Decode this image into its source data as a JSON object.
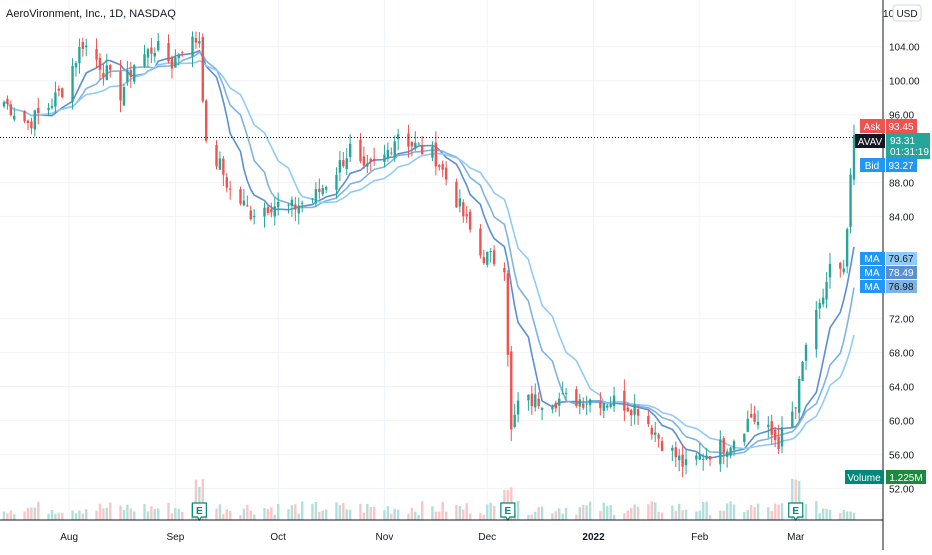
{
  "header": {
    "title": "AeroVironment, Inc., 1D, NASDAQ",
    "currency": "USD",
    "axis_top_fragment": "10"
  },
  "price_labels": {
    "ask": {
      "label": "Ask",
      "value": "93.45"
    },
    "last": {
      "label": "AVAV",
      "value": "93.31",
      "countdown": "01:31:19"
    },
    "bid": {
      "label": "Bid",
      "value": "93.27"
    },
    "ma1": {
      "label": "MA",
      "value": "79.67"
    },
    "ma2": {
      "label": "MA",
      "value": "78.49"
    },
    "ma3": {
      "label": "MA",
      "value": "76.98"
    },
    "volume": {
      "label": "Volume",
      "value": "1.225M"
    }
  },
  "earnings_marker": "E",
  "colors": {
    "up": "#26a69a",
    "down": "#ef5350",
    "up_volume": "#b2dfdb",
    "down_volume": "#f7c6c5",
    "ma_light": "#90caf9",
    "ma_mid": "#7fb3e0",
    "ma_dark": "#5b8fd4",
    "grid": "#f0f3fa",
    "ask": "#ef5350",
    "bid": "#2196f3",
    "last": "#26a69a",
    "ma_label": "#2196f3",
    "volume_label": "#00897b",
    "earnings": "#00897b"
  },
  "chart_data": {
    "type": "candlestick",
    "title": "AeroVironment, Inc., 1D, NASDAQ",
    "y_axis": {
      "ticks": [
        104.0,
        100.0,
        96.0,
        88.0,
        84.0,
        72.0,
        68.0,
        64.0,
        60.0,
        56.0,
        52.0
      ],
      "tick_labels": [
        "104.00",
        "100.00",
        "96.00",
        "88.00",
        "84.00",
        "72.00",
        "68.00",
        "64.00",
        "60.00",
        "56.00",
        "52.00"
      ],
      "range": [
        48.3,
        109.5
      ],
      "unit": "USD"
    },
    "x_axis": {
      "labels": [
        "Aug",
        "Sep",
        "Oct",
        "Nov",
        "Dec",
        "2022",
        "Feb",
        "Mar"
      ],
      "range": [
        "2021-07-13",
        "2022-03-18"
      ]
    },
    "earnings_dates": [
      "2021-09-08",
      "2021-12-07",
      "2022-03-01"
    ],
    "last_price": 93.31,
    "ask": 93.45,
    "bid": 93.27,
    "moving_averages": [
      79.67,
      78.49,
      76.98
    ],
    "volume_last": "1.225M",
    "anchors": [
      [
        "2021-07-13",
        97.5
      ],
      [
        "2021-07-20",
        95.0
      ],
      [
        "2021-07-26",
        97.0
      ],
      [
        "2021-07-30",
        99.0
      ],
      [
        "2021-08-05",
        104.5
      ],
      [
        "2021-08-10",
        102.0
      ],
      [
        "2021-08-16",
        98.5
      ],
      [
        "2021-08-20",
        102.0
      ],
      [
        "2021-08-26",
        104.0
      ],
      [
        "2021-08-31",
        102.0
      ],
      [
        "2021-09-03",
        104.0
      ],
      [
        "2021-09-08",
        105.0
      ],
      [
        "2021-09-10",
        92.0
      ],
      [
        "2021-09-14",
        90.0
      ],
      [
        "2021-09-17",
        87.0
      ],
      [
        "2021-09-23",
        84.5
      ],
      [
        "2021-09-29",
        85.5
      ],
      [
        "2021-10-05",
        85.0
      ],
      [
        "2021-10-12",
        86.5
      ],
      [
        "2021-10-18",
        89.5
      ],
      [
        "2021-10-22",
        92.0
      ],
      [
        "2021-10-26",
        89.0
      ],
      [
        "2021-11-01",
        91.0
      ],
      [
        "2021-11-05",
        94.0
      ],
      [
        "2021-11-09",
        92.5
      ],
      [
        "2021-11-16",
        91.0
      ],
      [
        "2021-11-22",
        86.0
      ],
      [
        "2021-11-29",
        79.5
      ],
      [
        "2021-12-06",
        78.5
      ],
      [
        "2021-12-08",
        58.5
      ],
      [
        "2021-12-10",
        62.0
      ],
      [
        "2021-12-17",
        62.5
      ],
      [
        "2021-12-23",
        62.5
      ],
      [
        "2021-12-31",
        62.5
      ],
      [
        "2022-01-07",
        62.3
      ],
      [
        "2022-01-14",
        61.5
      ],
      [
        "2022-01-21",
        57.5
      ],
      [
        "2022-01-28",
        54.5
      ],
      [
        "2022-02-02",
        56.0
      ],
      [
        "2022-02-10",
        57.5
      ],
      [
        "2022-02-16",
        60.5
      ],
      [
        "2022-02-24",
        57.5
      ],
      [
        "2022-03-01",
        61.5
      ],
      [
        "2022-03-04",
        69.0
      ],
      [
        "2022-03-08",
        73.0
      ],
      [
        "2022-03-11",
        78.0
      ],
      [
        "2022-03-15",
        77.0
      ],
      [
        "2022-03-18",
        93.3
      ]
    ]
  }
}
